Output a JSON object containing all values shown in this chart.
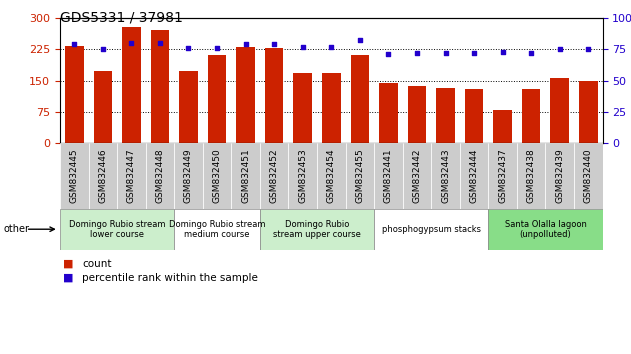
{
  "title": "GDS5331 / 37981",
  "categories": [
    "GSM832445",
    "GSM832446",
    "GSM832447",
    "GSM832448",
    "GSM832449",
    "GSM832450",
    "GSM832451",
    "GSM832452",
    "GSM832453",
    "GSM832454",
    "GSM832455",
    "GSM832441",
    "GSM832442",
    "GSM832443",
    "GSM832444",
    "GSM832437",
    "GSM832438",
    "GSM832439",
    "GSM832440"
  ],
  "counts": [
    232,
    173,
    278,
    270,
    173,
    210,
    230,
    228,
    167,
    168,
    210,
    143,
    138,
    133,
    130,
    80,
    130,
    155,
    150
  ],
  "percentiles": [
    79,
    75,
    80,
    80,
    76,
    76,
    79,
    79,
    77,
    77,
    82,
    71,
    72,
    72,
    72,
    73,
    72,
    75,
    75
  ],
  "bar_color": "#cc2200",
  "dot_color": "#2200cc",
  "left_ylim": [
    0,
    300
  ],
  "right_ylim": [
    0,
    100
  ],
  "left_yticks": [
    0,
    75,
    150,
    225,
    300
  ],
  "right_yticks": [
    0,
    25,
    50,
    75,
    100
  ],
  "gridlines": [
    75,
    150,
    225
  ],
  "groups": [
    {
      "label": "Domingo Rubio stream\nlower course",
      "start": 0,
      "end": 4,
      "color": "#cceecc"
    },
    {
      "label": "Domingo Rubio stream\nmedium course",
      "start": 4,
      "end": 7,
      "color": "#ffffff"
    },
    {
      "label": "Domingo Rubio\nstream upper course",
      "start": 7,
      "end": 11,
      "color": "#cceecc"
    },
    {
      "label": "phosphogypsum stacks",
      "start": 11,
      "end": 15,
      "color": "#ffffff"
    },
    {
      "label": "Santa Olalla lagoon\n(unpolluted)",
      "start": 15,
      "end": 19,
      "color": "#88dd88"
    }
  ],
  "other_label": "other",
  "legend_count_label": "count",
  "legend_pct_label": "percentile rank within the sample",
  "title_fontsize": 10,
  "tick_label_fontsize": 6.5,
  "group_label_fontsize": 6,
  "bar_width": 0.65,
  "xtick_bg_color": "#cccccc"
}
